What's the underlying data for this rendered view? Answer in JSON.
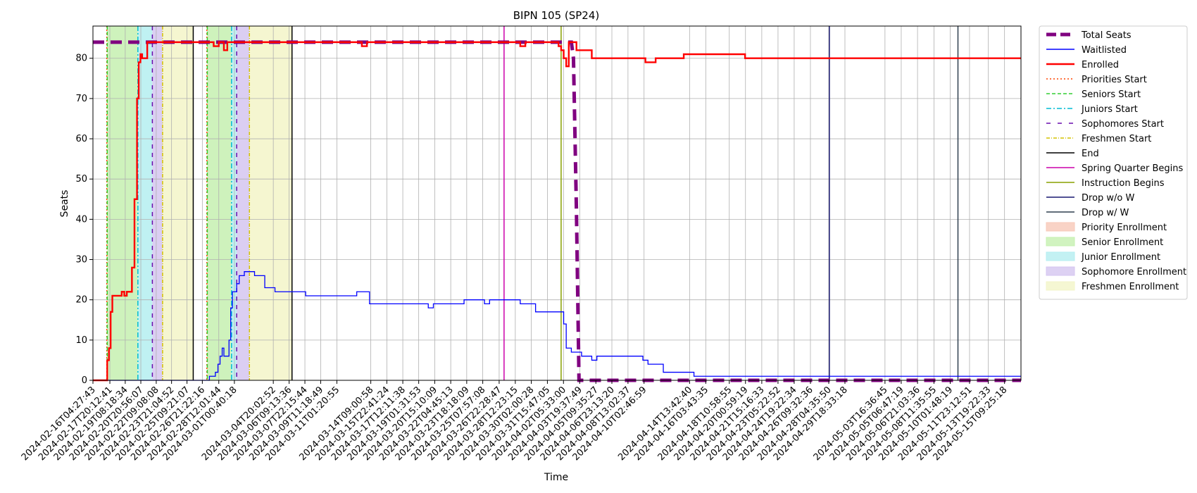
{
  "chart_data": {
    "type": "line",
    "title": "BIPN 105 (SP24)",
    "xlabel": "Time",
    "ylabel": "Seats",
    "ylim": [
      0,
      88
    ],
    "yticks": [
      0,
      10,
      20,
      30,
      40,
      50,
      60,
      70,
      80
    ],
    "grid": true,
    "legend_placement": "outside-right",
    "x_range": [
      "2024-02-16T04:27:43",
      "2024-05-17T00:00:00"
    ],
    "x_tick_labels": [
      "2024-02-16T04:27:43",
      "2024-02-17T20:12:41",
      "2024-02-19T08:18:34",
      "2024-02-20T20:56:07",
      "2024-02-22T09:08:08",
      "2024-02-23T21:04:52",
      "2024-02-25T09:21:07",
      "2024-02-26T21:22:16",
      "2024-02-28T12:01:44",
      "2024-03-01T00:40:18",
      "2024-03-04T20:02:52",
      "2024-03-06T09:13:36",
      "2024-03-07T22:15:44",
      "2024-03-09T11:18:49",
      "2024-03-11T01:20:55",
      "2024-03-14T09:00:58",
      "2024-03-15T22:41:24",
      "2024-03-17T12:11:38",
      "2024-03-19T01:31:53",
      "2024-03-20T15:10:09",
      "2024-03-22T04:45:13",
      "2024-03-23T18:18:09",
      "2024-03-25T07:57:08",
      "2024-03-26T22:28:47",
      "2024-03-28T12:23:15",
      "2024-03-30T02:00:28",
      "2024-03-31T15:47:05",
      "2024-04-02T05:33:00",
      "2024-04-03T19:37:49",
      "2024-04-05T09:35:27",
      "2024-04-06T23:13:20",
      "2024-04-08T13:02:37",
      "2024-04-10T02:46:59",
      "2024-04-14T13:42:40",
      "2024-04-16T03:43:35",
      "2024-04-18T10:58:55",
      "2024-04-20T00:59:19",
      "2024-04-21T15:16:33",
      "2024-04-23T05:22:52",
      "2024-04-24T19:22:34",
      "2024-04-26T09:32:36",
      "2024-04-28T04:35:50",
      "2024-04-29T18:33:18",
      "2024-05-03T16:36:45",
      "2024-05-05T06:47:19",
      "2024-05-06T21:03:36",
      "2024-05-08T11:35:55",
      "2024-05-10T01:48:19",
      "2024-05-11T23:12:51",
      "2024-05-13T19:22:33",
      "2024-05-15T09:25:18"
    ],
    "legend": [
      {
        "label": "Total Seats",
        "color": "#800080",
        "style": "dashed-thick"
      },
      {
        "label": "Waitlisted",
        "color": "#0000ff",
        "style": "solid-thin"
      },
      {
        "label": "Enrolled",
        "color": "#ff0000",
        "style": "solid-thick"
      },
      {
        "label": "Priorities Start",
        "color": "#ff4500",
        "style": "dotted"
      },
      {
        "label": "Seniors Start",
        "color": "#32cd32",
        "style": "dashed"
      },
      {
        "label": "Juniors Start",
        "color": "#00bcd4",
        "style": "dashdot"
      },
      {
        "label": "Sophomores Start",
        "color": "#6a0dad",
        "style": "dash-dot-sparse"
      },
      {
        "label": "Freshmen Start",
        "color": "#d4c200",
        "style": "dashdot-fine"
      },
      {
        "label": "End",
        "color": "#000000",
        "style": "solid"
      },
      {
        "label": "Spring Quarter Begins",
        "color": "#cc00aa",
        "style": "solid"
      },
      {
        "label": "Instruction Begins",
        "color": "#88a000",
        "style": "solid"
      },
      {
        "label": "Drop w/o W",
        "color": "#191970",
        "style": "solid"
      },
      {
        "label": "Drop w/ W",
        "color": "#2f3f4f",
        "style": "solid"
      },
      {
        "label": "Priority Enrollment",
        "color": "#f7c8b8",
        "style": "patch"
      },
      {
        "label": "Senior Enrollment",
        "color": "#c5f0b0",
        "style": "patch"
      },
      {
        "label": "Junior Enrollment",
        "color": "#b4eef0",
        "style": "patch"
      },
      {
        "label": "Sophomore Enrollment",
        "color": "#d5c5f0",
        "style": "patch"
      },
      {
        "label": "Freshmen Enrollment",
        "color": "#f3f5c8",
        "style": "patch"
      }
    ],
    "enrollment_windows": [
      {
        "type": "senior",
        "color": "#c5f0b0",
        "x0": "2024-02-17T14:00:00",
        "x1": "2024-02-20T14:00:00"
      },
      {
        "type": "junior",
        "color": "#b4eef0",
        "x0": "2024-02-20T14:00:00",
        "x1": "2024-02-22T00:00:00"
      },
      {
        "type": "sophomore",
        "color": "#d5c5f0",
        "x0": "2024-02-22T00:00:00",
        "x1": "2024-02-23T00:00:00"
      },
      {
        "type": "freshmen",
        "color": "#f3f5c8",
        "x0": "2024-02-23T00:00:00",
        "x1": "2024-02-26T00:00:00"
      },
      {
        "type": "senior",
        "color": "#c5f0b0",
        "x0": "2024-02-27T09:00:00",
        "x1": "2024-02-29T18:00:00"
      },
      {
        "type": "junior",
        "color": "#b4eef0",
        "x0": "2024-02-29T18:00:00",
        "x1": "2024-03-01T06:00:00"
      },
      {
        "type": "sophomore",
        "color": "#d5c5f0",
        "x0": "2024-03-01T06:00:00",
        "x1": "2024-03-02T12:00:00"
      },
      {
        "type": "freshmen",
        "color": "#f3f5c8",
        "x0": "2024-03-02T12:00:00",
        "x1": "2024-03-06T16:00:00"
      }
    ],
    "event_lines": [
      {
        "label": "Priorities Start",
        "color": "#ff4500",
        "dash": "2,3",
        "x": "2024-02-17T13:00:00"
      },
      {
        "label": "Seniors Start",
        "color": "#32cd32",
        "dash": "5,3",
        "x": "2024-02-17T14:00:00"
      },
      {
        "label": "Juniors Start",
        "color": "#00bcd4",
        "dash": "7,3,2,3",
        "x": "2024-02-20T14:00:00"
      },
      {
        "label": "Sophomores Start",
        "color": "#6a0dad",
        "dash": "6,6",
        "x": "2024-02-22T00:00:00"
      },
      {
        "label": "Freshmen Start",
        "color": "#d4c200",
        "dash": "5,2,1,2",
        "x": "2024-02-23T00:00:00"
      },
      {
        "label": "End",
        "color": "#000000",
        "dash": "",
        "x": "2024-02-26T00:00:00"
      },
      {
        "label": "Priorities Start",
        "color": "#ff4500",
        "dash": "2,3",
        "x": "2024-02-27T08:00:00"
      },
      {
        "label": "Seniors Start",
        "color": "#32cd32",
        "dash": "5,3",
        "x": "2024-02-27T09:00:00"
      },
      {
        "label": "Juniors Start",
        "color": "#00bcd4",
        "dash": "7,3,2,3",
        "x": "2024-02-29T18:00:00"
      },
      {
        "label": "Sophomores Start",
        "color": "#6a0dad",
        "dash": "6,6",
        "x": "2024-03-01T06:00:00"
      },
      {
        "label": "Freshmen Start",
        "color": "#d4c200",
        "dash": "5,2,1,2",
        "x": "2024-03-02T12:00:00"
      },
      {
        "label": "End",
        "color": "#000000",
        "dash": "",
        "x": "2024-03-06T16:00:00"
      },
      {
        "label": "Spring Quarter Begins",
        "color": "#cc00aa",
        "dash": "",
        "x": "2024-03-27T10:00:00"
      },
      {
        "label": "Instruction Begins",
        "color": "#88a000",
        "dash": "",
        "x": "2024-04-02T00:00:00"
      },
      {
        "label": "Drop w/o W",
        "color": "#191970",
        "dash": "",
        "x": "2024-04-28T06:00:00"
      },
      {
        "label": "Drop w/ W",
        "color": "#2f3f4f",
        "dash": "",
        "x": "2024-05-10T20:00:00"
      }
    ],
    "series": [
      {
        "name": "Total Seats",
        "color": "#800080",
        "kind": "dashed-thick",
        "points": [
          [
            "2024-02-16T04:27:43",
            84
          ],
          [
            "2024-04-03T00:00:00",
            84
          ],
          [
            "2024-04-03T05:00:00",
            80
          ],
          [
            "2024-04-03T12:00:00",
            42
          ],
          [
            "2024-04-03T18:00:00",
            0
          ],
          [
            "2024-05-17T00:00:00",
            0
          ]
        ]
      },
      {
        "name": "Waitlisted",
        "color": "#0000ff",
        "kind": "step-thin",
        "points": [
          [
            "2024-02-16T04:27:43",
            0
          ],
          [
            "2024-02-27T12:00:00",
            0
          ],
          [
            "2024-02-27T14:00:00",
            1
          ],
          [
            "2024-02-28T00:00:00",
            1
          ],
          [
            "2024-02-28T04:00:00",
            2
          ],
          [
            "2024-02-28T10:00:00",
            4
          ],
          [
            "2024-02-28T15:00:00",
            6
          ],
          [
            "2024-02-28T20:00:00",
            8
          ],
          [
            "2024-02-29T00:00:00",
            6
          ],
          [
            "2024-02-29T12:00:00",
            10
          ],
          [
            "2024-02-29T16:00:00",
            18
          ],
          [
            "2024-02-29T20:00:00",
            22
          ],
          [
            "2024-03-01T06:00:00",
            24
          ],
          [
            "2024-03-01T12:00:00",
            26
          ],
          [
            "2024-03-02T00:00:00",
            27
          ],
          [
            "2024-03-03T00:00:00",
            26
          ],
          [
            "2024-03-04T00:00:00",
            23
          ],
          [
            "2024-03-05T00:00:00",
            22
          ],
          [
            "2024-03-08T00:00:00",
            21
          ],
          [
            "2024-03-13T00:00:00",
            22
          ],
          [
            "2024-03-14T06:00:00",
            19
          ],
          [
            "2024-03-20T00:00:00",
            18
          ],
          [
            "2024-03-20T12:00:00",
            19
          ],
          [
            "2024-03-23T12:00:00",
            20
          ],
          [
            "2024-03-25T12:00:00",
            19
          ],
          [
            "2024-03-26T00:00:00",
            20
          ],
          [
            "2024-03-29T00:00:00",
            19
          ],
          [
            "2024-03-30T12:00:00",
            17
          ],
          [
            "2024-04-01T18:00:00",
            17
          ],
          [
            "2024-04-02T06:00:00",
            14
          ],
          [
            "2024-04-02T12:00:00",
            8
          ],
          [
            "2024-04-03T00:00:00",
            7
          ],
          [
            "2024-04-04T00:00:00",
            6
          ],
          [
            "2024-04-05T00:00:00",
            5
          ],
          [
            "2024-04-05T12:00:00",
            6
          ],
          [
            "2024-04-10T00:00:00",
            5
          ],
          [
            "2024-04-10T12:00:00",
            4
          ],
          [
            "2024-04-12T00:00:00",
            2
          ],
          [
            "2024-04-15T00:00:00",
            1
          ],
          [
            "2024-05-17T00:00:00",
            1
          ]
        ]
      },
      {
        "name": "Enrolled",
        "color": "#ff0000",
        "kind": "step-thick",
        "points": [
          [
            "2024-02-16T04:27:43",
            0
          ],
          [
            "2024-02-17T12:00:00",
            0
          ],
          [
            "2024-02-17T14:00:00",
            5
          ],
          [
            "2024-02-17T18:00:00",
            8
          ],
          [
            "2024-02-17T22:00:00",
            17
          ],
          [
            "2024-02-18T02:00:00",
            21
          ],
          [
            "2024-02-19T00:00:00",
            22
          ],
          [
            "2024-02-19T06:00:00",
            21
          ],
          [
            "2024-02-19T12:00:00",
            22
          ],
          [
            "2024-02-20T00:00:00",
            28
          ],
          [
            "2024-02-20T06:00:00",
            45
          ],
          [
            "2024-02-20T12:00:00",
            70
          ],
          [
            "2024-02-20T16:00:00",
            79
          ],
          [
            "2024-02-20T20:00:00",
            81
          ],
          [
            "2024-02-21T00:00:00",
            80
          ],
          [
            "2024-02-21T12:00:00",
            84
          ],
          [
            "2024-02-27T12:00:00",
            84
          ],
          [
            "2024-02-28T00:00:00",
            83
          ],
          [
            "2024-02-28T12:00:00",
            84
          ],
          [
            "2024-02-29T00:00:00",
            82
          ],
          [
            "2024-02-29T08:00:00",
            84
          ],
          [
            "2024-03-13T12:00:00",
            83
          ],
          [
            "2024-03-14T00:00:00",
            84
          ],
          [
            "2024-03-29T00:00:00",
            83
          ],
          [
            "2024-03-29T12:00:00",
            84
          ],
          [
            "2024-04-01T18:00:00",
            83
          ],
          [
            "2024-04-02T00:00:00",
            82
          ],
          [
            "2024-04-02T06:00:00",
            80
          ],
          [
            "2024-04-02T12:00:00",
            78
          ],
          [
            "2024-04-02T18:00:00",
            84
          ],
          [
            "2024-04-03T12:00:00",
            82
          ],
          [
            "2024-04-05T00:00:00",
            80
          ],
          [
            "2024-04-10T06:00:00",
            79
          ],
          [
            "2024-04-11T06:00:00",
            80
          ],
          [
            "2024-04-14T00:00:00",
            81
          ],
          [
            "2024-04-20T00:00:00",
            80
          ],
          [
            "2024-05-17T00:00:00",
            80
          ]
        ]
      }
    ]
  }
}
